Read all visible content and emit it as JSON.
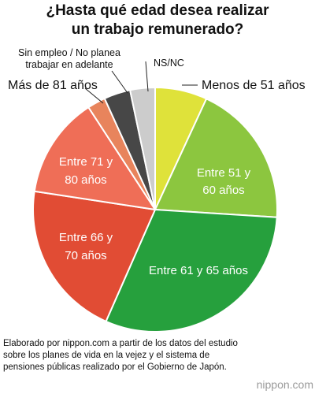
{
  "title_lines": [
    "¿Hasta qué edad desea realizar",
    "un trabajo remunerado?"
  ],
  "chart_data": {
    "type": "pie",
    "title": "¿Hasta qué edad desea realizar un trabajo remunerado?",
    "start_angle_deg": 0,
    "direction": "clockwise",
    "slices": [
      {
        "label": "Menos de 51 años",
        "value": 6.9,
        "color": "#dfe23a"
      },
      {
        "label": "Entre 51 y 60 años",
        "value": 19.1,
        "color": "#8cc63f"
      },
      {
        "label": "Entre 61 y 65 años",
        "value": 30.6,
        "color": "#26a03d"
      },
      {
        "label": "Entre 66 y 70 años",
        "value": 20.8,
        "color": "#e14c34"
      },
      {
        "label": "Entre 71 y 80 años",
        "value": 13.4,
        "color": "#ef6e57"
      },
      {
        "label": "Más de 81 años",
        "value": 2.4,
        "color": "#e8845c"
      },
      {
        "label": "Sin empleo / No planea trabajar en adelante",
        "value": 3.5,
        "color": "#474747"
      },
      {
        "label": "NS/NC",
        "value": 3.3,
        "color": "#cccccc"
      }
    ]
  },
  "labels": {
    "menos51": "Menos de 51 años",
    "e51_line1": "Entre 51 y",
    "e51_line2": "60 años",
    "e61": "Entre 61 y 65 años",
    "e66_line1": "Entre 66 y",
    "e66_line2": "70 años",
    "e71_line1": "Entre 71 y",
    "e71_line2": "80 años",
    "mas81": "Más de 81 años",
    "sin_line1": "Sin empleo / No planea",
    "sin_line2": "trabajar en adelante",
    "nsnc": "NS/NC"
  },
  "source_text": "Elaborado por nippon.com a partir de los datos del estudio sobre los planes de vida en la vejez y el sistema de pensiones públicas realizado por el Gobierno de Japón.",
  "brand": "nippon.com"
}
